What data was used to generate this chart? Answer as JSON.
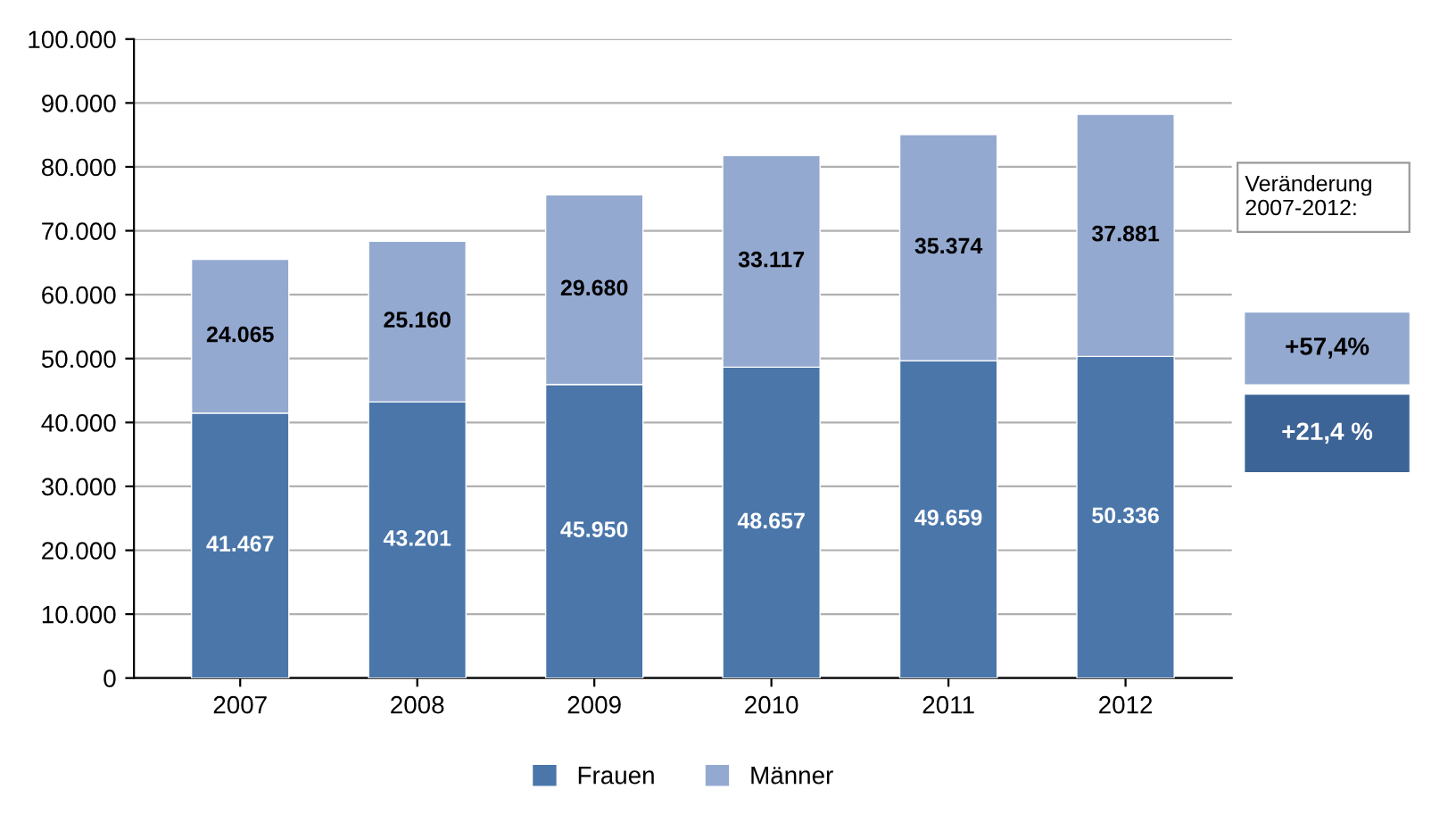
{
  "chart_data": {
    "type": "bar",
    "stacked": true,
    "categories": [
      "2007",
      "2008",
      "2009",
      "2010",
      "2011",
      "2012"
    ],
    "series": [
      {
        "name": "Frauen",
        "color": "#4a76aa",
        "values": [
          41467,
          43201,
          45950,
          48657,
          49659,
          50336
        ],
        "value_labels": [
          "41.467",
          "43.201",
          "45.950",
          "48.657",
          "49.659",
          "50.336"
        ]
      },
      {
        "name": "Männer",
        "color": "#94a9d0",
        "values": [
          24065,
          25160,
          29680,
          33117,
          35374,
          37881
        ],
        "value_labels": [
          "24.065",
          "25.160",
          "29.680",
          "33.117",
          "35.374",
          "37.881"
        ]
      }
    ],
    "ylim": [
      0,
      100000
    ],
    "yticks": [
      {
        "value": 0,
        "label": "0"
      },
      {
        "value": 10000,
        "label": "10.000"
      },
      {
        "value": 20000,
        "label": "20.000"
      },
      {
        "value": 30000,
        "label": "30.000"
      },
      {
        "value": 40000,
        "label": "40.000"
      },
      {
        "value": 50000,
        "label": "50.000"
      },
      {
        "value": 60000,
        "label": "60.000"
      },
      {
        "value": 70000,
        "label": "70.000"
      },
      {
        "value": 80000,
        "label": "80.000"
      },
      {
        "value": 90000,
        "label": "90.000"
      },
      {
        "value": 100000,
        "label": "100.000"
      }
    ],
    "grid": "y",
    "legend": "bottom",
    "annotations": [
      "Veränderung\n2007-2012:",
      "+57,4%",
      "+21,4 %"
    ]
  }
}
